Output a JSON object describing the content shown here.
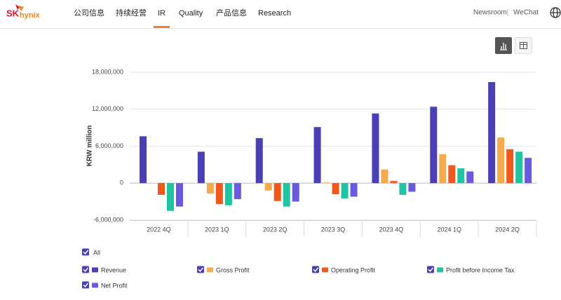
{
  "logo": {
    "sk": "SK",
    "hynix": "hynix"
  },
  "nav": {
    "items": [
      "公司信息",
      "持续经营",
      "IR",
      "Quality",
      "产品信息",
      "Research"
    ],
    "active": 2
  },
  "top_links": [
    "Newsroom",
    "WeChat"
  ],
  "legend": {
    "all": "All"
  },
  "chart_data": {
    "type": "bar",
    "ylabel": "KRW million",
    "categories": [
      "2022 4Q",
      "2023 1Q",
      "2023 2Q",
      "2023 3Q",
      "2023 4Q",
      "2024 1Q",
      "2024 2Q"
    ],
    "series": [
      {
        "name": "Revenue",
        "color": "#4b3fb6",
        "values": [
          7600000,
          5100000,
          7300000,
          9100000,
          11300000,
          12400000,
          16400000
        ]
      },
      {
        "name": "Gross Profit",
        "color": "#f7a94e",
        "values": [
          0,
          -1700000,
          -1200000,
          100000,
          2200000,
          4700000,
          7400000
        ]
      },
      {
        "name": "Operating Profit",
        "color": "#f2571c",
        "values": [
          -1900000,
          -3400000,
          -2900000,
          -1800000,
          350000,
          2900000,
          5500000
        ]
      },
      {
        "name": "Profit before Income Tax",
        "color": "#1fc4a2",
        "values": [
          -4500000,
          -3600000,
          -3800000,
          -2500000,
          -1900000,
          2400000,
          5100000
        ]
      },
      {
        "name": "Net Profit",
        "color": "#6a5ae0",
        "values": [
          -3800000,
          -2600000,
          -3000000,
          -2200000,
          -1400000,
          1900000,
          4100000
        ]
      }
    ],
    "ylim": [
      -6000000,
      18000000
    ],
    "yticks": [
      {
        "value": -6000000,
        "label": "-6,000,000"
      },
      0,
      {
        "value": 6000000,
        "label": "6,000,000"
      },
      {
        "value": 12000000,
        "label": "12,000,000"
      },
      {
        "value": 18000000,
        "label": "18,000,000"
      }
    ],
    "grid": true
  }
}
